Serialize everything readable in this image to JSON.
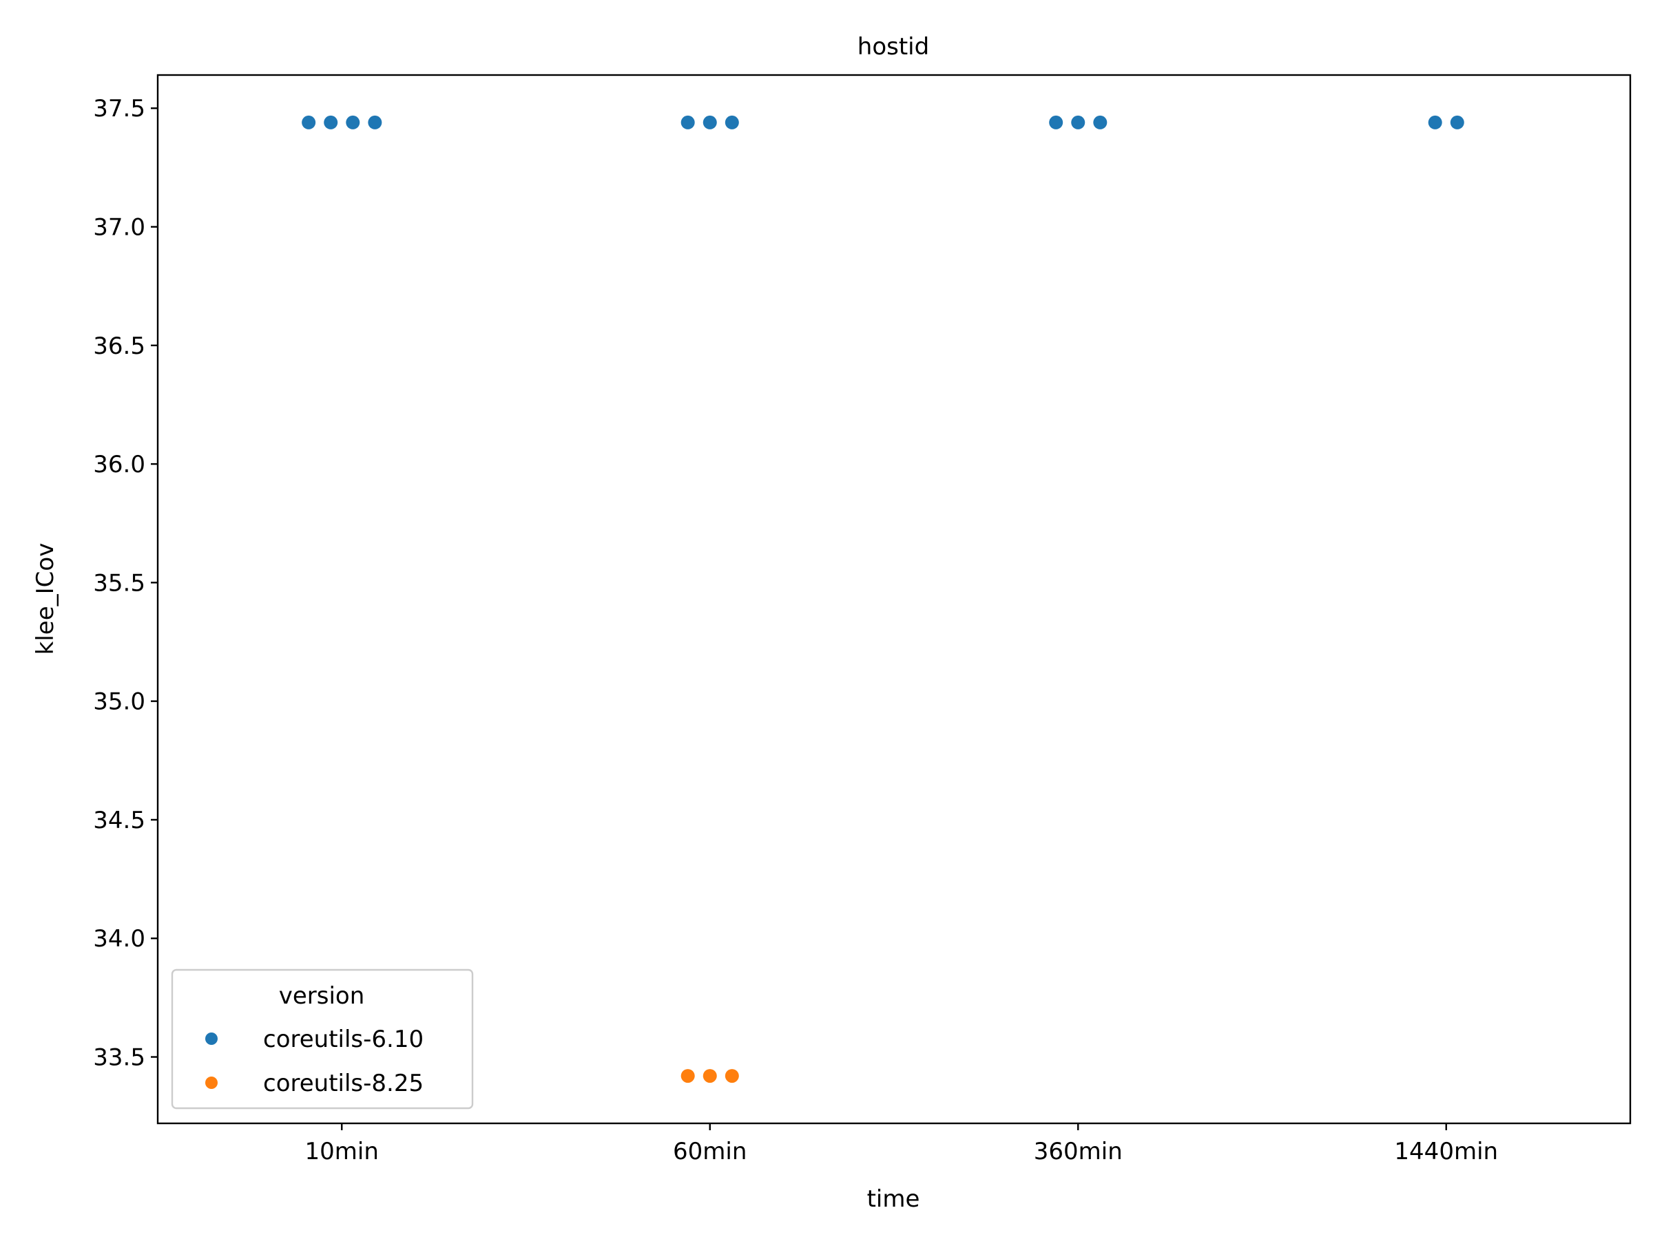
{
  "chart_data": {
    "type": "scatter",
    "title": "hostid",
    "xlabel": "time",
    "ylabel": "klee_ICov",
    "categories": [
      "10min",
      "60min",
      "360min",
      "1440min"
    ],
    "ylim": [
      33.22,
      37.64
    ],
    "yticks": [
      33.5,
      34.0,
      34.5,
      35.0,
      35.5,
      36.0,
      36.5,
      37.0,
      37.5
    ],
    "grid": false,
    "legend": {
      "title": "version",
      "placement": "bottom-left"
    },
    "series": [
      {
        "name": "coreutils-6.10",
        "color": "#1f77b4",
        "points": [
          {
            "category": "10min",
            "y": 37.44
          },
          {
            "category": "10min",
            "y": 37.44
          },
          {
            "category": "10min",
            "y": 37.44
          },
          {
            "category": "10min",
            "y": 37.44
          },
          {
            "category": "60min",
            "y": 37.44
          },
          {
            "category": "60min",
            "y": 37.44
          },
          {
            "category": "60min",
            "y": 37.44
          },
          {
            "category": "360min",
            "y": 37.44
          },
          {
            "category": "360min",
            "y": 37.44
          },
          {
            "category": "360min",
            "y": 37.44
          },
          {
            "category": "1440min",
            "y": 37.44
          },
          {
            "category": "1440min",
            "y": 37.44
          }
        ]
      },
      {
        "name": "coreutils-8.25",
        "color": "#ff7f0e",
        "points": [
          {
            "category": "60min",
            "y": 33.42
          },
          {
            "category": "60min",
            "y": 33.42
          },
          {
            "category": "60min",
            "y": 33.42
          }
        ]
      }
    ]
  }
}
